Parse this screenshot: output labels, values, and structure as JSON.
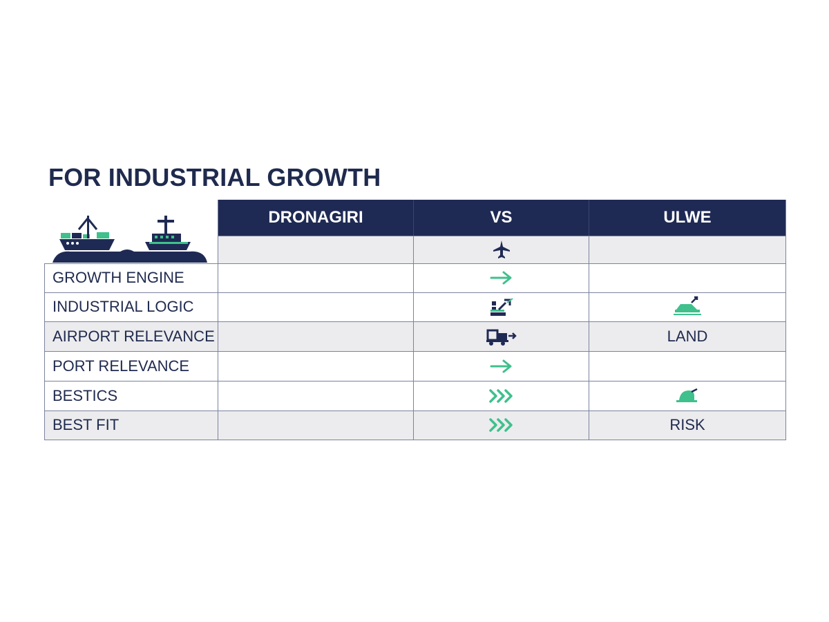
{
  "title": "FOR INDUSTRIAL GROWTH",
  "header": {
    "col1": "DRONAGIRI",
    "col2": "VS",
    "col3": "ULWE"
  },
  "rows": [
    {
      "label": "GROWTH ENGINE",
      "vs_icon": "arrow-right-icon",
      "ulwe": ""
    },
    {
      "label": "INDUSTRIAL LOGIC",
      "vs_icon": "industrial-icon",
      "ulwe_icon": "land-vehicle-icon"
    },
    {
      "label": "AIRPORT RELEVANCE",
      "vs_icon": "truck-icon",
      "ulwe": "LAND"
    },
    {
      "label": "PORT RELEVANCE",
      "vs_icon": "arrow-right-icon",
      "ulwe": ""
    },
    {
      "label": "BESTICS",
      "vs_icon": "triple-chevron-icon",
      "ulwe_icon": "helmet-icon"
    },
    {
      "label": "BEST FIT",
      "vs_icon": "triple-chevron-icon",
      "ulwe": "RISK"
    }
  ],
  "colors": {
    "navy": "#1f2a54",
    "green": "#3fc08c",
    "row_shade": "#ececee",
    "border": "#7b829e"
  }
}
